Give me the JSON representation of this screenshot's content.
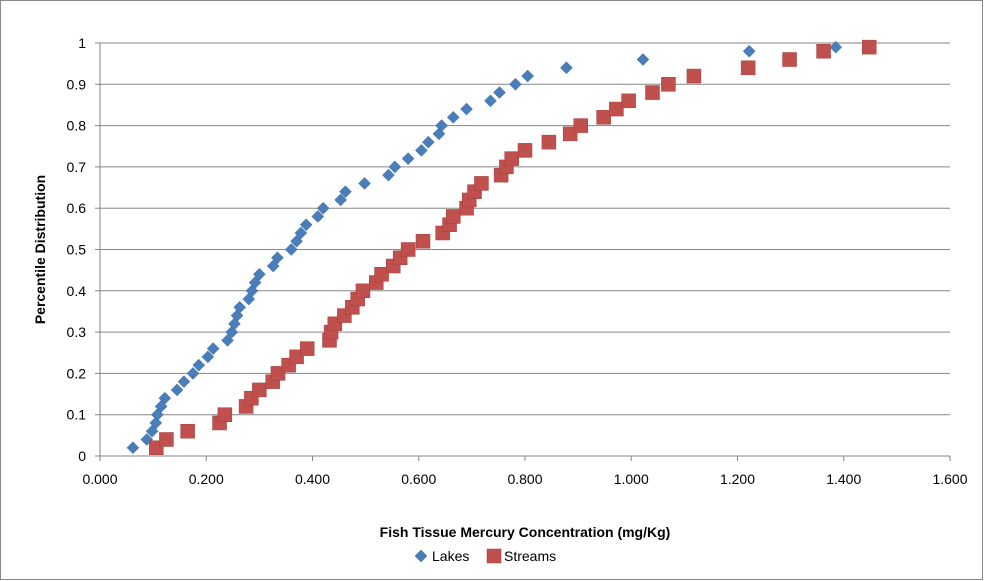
{
  "chart_data": {
    "type": "scatter",
    "title": "",
    "xlabel": "Fish Tissue Mercury Concentration (mg/Kg)",
    "ylabel": "Percentile Distribution",
    "xlim": [
      0,
      1.6
    ],
    "ylim": [
      0,
      1
    ],
    "x_ticks": [
      "0.000",
      "0.200",
      "0.400",
      "0.600",
      "0.800",
      "1.000",
      "1.200",
      "1.400",
      "1.600"
    ],
    "y_ticks": [
      "0",
      "0.1",
      "0.2",
      "0.3",
      "0.4",
      "0.5",
      "0.6",
      "0.7",
      "0.8",
      "0.9",
      "1"
    ],
    "grid": "horizontal",
    "legend_position": "bottom",
    "series": [
      {
        "name": "Lakes",
        "marker": "diamond",
        "color": "#4a7ebb",
        "points": [
          [
            0.062,
            0.02
          ],
          [
            0.088,
            0.04
          ],
          [
            0.098,
            0.06
          ],
          [
            0.105,
            0.08
          ],
          [
            0.108,
            0.1
          ],
          [
            0.115,
            0.12
          ],
          [
            0.122,
            0.14
          ],
          [
            0.145,
            0.16
          ],
          [
            0.158,
            0.18
          ],
          [
            0.175,
            0.2
          ],
          [
            0.186,
            0.22
          ],
          [
            0.203,
            0.24
          ],
          [
            0.213,
            0.26
          ],
          [
            0.24,
            0.28
          ],
          [
            0.248,
            0.3
          ],
          [
            0.253,
            0.32
          ],
          [
            0.258,
            0.34
          ],
          [
            0.263,
            0.36
          ],
          [
            0.28,
            0.38
          ],
          [
            0.286,
            0.4
          ],
          [
            0.292,
            0.42
          ],
          [
            0.3,
            0.44
          ],
          [
            0.326,
            0.46
          ],
          [
            0.334,
            0.48
          ],
          [
            0.36,
            0.5
          ],
          [
            0.37,
            0.52
          ],
          [
            0.378,
            0.54
          ],
          [
            0.388,
            0.56
          ],
          [
            0.41,
            0.58
          ],
          [
            0.42,
            0.6
          ],
          [
            0.453,
            0.62
          ],
          [
            0.462,
            0.64
          ],
          [
            0.498,
            0.66
          ],
          [
            0.543,
            0.68
          ],
          [
            0.555,
            0.7
          ],
          [
            0.58,
            0.72
          ],
          [
            0.605,
            0.74
          ],
          [
            0.618,
            0.76
          ],
          [
            0.638,
            0.78
          ],
          [
            0.643,
            0.8
          ],
          [
            0.665,
            0.82
          ],
          [
            0.69,
            0.84
          ],
          [
            0.735,
            0.86
          ],
          [
            0.752,
            0.88
          ],
          [
            0.782,
            0.9
          ],
          [
            0.805,
            0.92
          ],
          [
            0.878,
            0.94
          ],
          [
            1.022,
            0.96
          ],
          [
            1.222,
            0.98
          ],
          [
            1.385,
            0.99
          ]
        ]
      },
      {
        "name": "Streams",
        "marker": "square",
        "color": "#c0504d",
        "points": [
          [
            0.106,
            0.02
          ],
          [
            0.125,
            0.04
          ],
          [
            0.165,
            0.06
          ],
          [
            0.225,
            0.08
          ],
          [
            0.235,
            0.1
          ],
          [
            0.275,
            0.12
          ],
          [
            0.285,
            0.14
          ],
          [
            0.3,
            0.16
          ],
          [
            0.325,
            0.18
          ],
          [
            0.335,
            0.2
          ],
          [
            0.355,
            0.22
          ],
          [
            0.37,
            0.24
          ],
          [
            0.39,
            0.26
          ],
          [
            0.432,
            0.28
          ],
          [
            0.435,
            0.3
          ],
          [
            0.442,
            0.32
          ],
          [
            0.46,
            0.34
          ],
          [
            0.475,
            0.36
          ],
          [
            0.485,
            0.38
          ],
          [
            0.495,
            0.4
          ],
          [
            0.52,
            0.42
          ],
          [
            0.53,
            0.44
          ],
          [
            0.552,
            0.46
          ],
          [
            0.565,
            0.48
          ],
          [
            0.58,
            0.5
          ],
          [
            0.608,
            0.52
          ],
          [
            0.645,
            0.54
          ],
          [
            0.658,
            0.56
          ],
          [
            0.665,
            0.58
          ],
          [
            0.69,
            0.6
          ],
          [
            0.695,
            0.62
          ],
          [
            0.705,
            0.64
          ],
          [
            0.718,
            0.66
          ],
          [
            0.755,
            0.68
          ],
          [
            0.765,
            0.7
          ],
          [
            0.775,
            0.72
          ],
          [
            0.8,
            0.74
          ],
          [
            0.845,
            0.76
          ],
          [
            0.885,
            0.78
          ],
          [
            0.905,
            0.8
          ],
          [
            0.948,
            0.82
          ],
          [
            0.972,
            0.84
          ],
          [
            0.995,
            0.86
          ],
          [
            1.04,
            0.88
          ],
          [
            1.07,
            0.9
          ],
          [
            1.118,
            0.92
          ],
          [
            1.22,
            0.94
          ],
          [
            1.298,
            0.96
          ],
          [
            1.362,
            0.98
          ],
          [
            1.448,
            0.99
          ]
        ]
      }
    ]
  }
}
